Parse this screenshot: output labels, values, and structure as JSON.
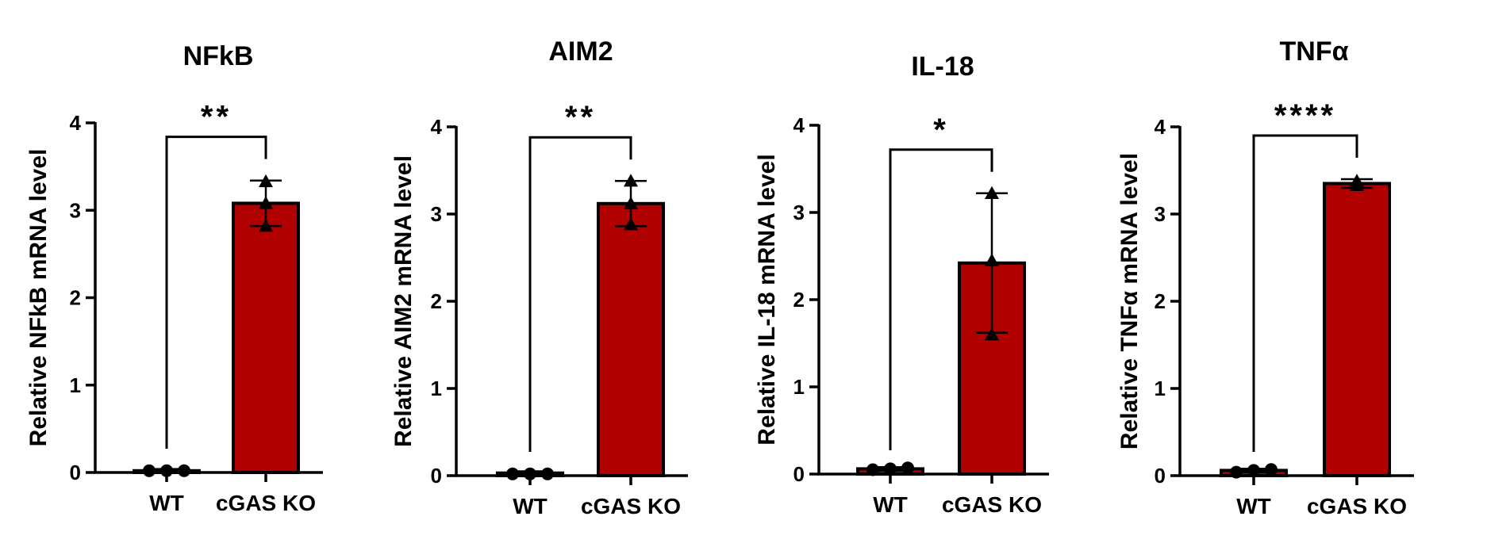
{
  "colors": {
    "bar_ko": "#b00000",
    "bar_wt": "#b00000",
    "axis": "#000000",
    "point": "#000000"
  },
  "chart_data": [
    {
      "type": "bar",
      "title": "NFkB",
      "ylabel": "Relative NFkB mRNA level",
      "xlabel": "",
      "ylim": [
        0,
        4
      ],
      "yticks": [
        "0",
        "1",
        "2",
        "3",
        "4"
      ],
      "categories": [
        "WT",
        "cGAS KO"
      ],
      "values": [
        0.02,
        3.08
      ],
      "errors": [
        0.02,
        0.26
      ],
      "points": [
        [
          0.02,
          0.02,
          0.02
        ],
        [
          3.33,
          3.08,
          2.82
        ]
      ],
      "point_shapes": [
        "circle",
        "triangle"
      ],
      "significance": "**"
    },
    {
      "type": "bar",
      "title": "AIM2",
      "ylabel": "Relative AIM2 mRNA level",
      "xlabel": "",
      "ylim": [
        0,
        4
      ],
      "yticks": [
        "0",
        "1",
        "2",
        "3",
        "4"
      ],
      "categories": [
        "WT",
        "cGAS KO"
      ],
      "values": [
        0.03,
        3.12
      ],
      "errors": [
        0.02,
        0.26
      ],
      "points": [
        [
          0.02,
          0.02,
          0.02
        ],
        [
          3.38,
          3.12,
          2.88
        ]
      ],
      "point_shapes": [
        "circle",
        "triangle"
      ],
      "significance": "**"
    },
    {
      "type": "bar",
      "title": "IL-18",
      "ylabel": "Relative IL-18 mRNA level",
      "xlabel": "",
      "ylim": [
        0,
        4
      ],
      "yticks": [
        "0",
        "1",
        "2",
        "3",
        "4"
      ],
      "categories": [
        "WT",
        "cGAS KO"
      ],
      "values": [
        0.06,
        2.42
      ],
      "errors": [
        0.02,
        0.8
      ],
      "points": [
        [
          0.05,
          0.06,
          0.07
        ],
        [
          3.22,
          2.45,
          1.6
        ]
      ],
      "point_shapes": [
        "circle",
        "triangle"
      ],
      "significance": "*"
    },
    {
      "type": "bar",
      "title": "TNFα",
      "ylabel": "Relative TNFα mRNA level",
      "xlabel": "",
      "ylim": [
        0,
        4
      ],
      "yticks": [
        "0",
        "1",
        "2",
        "3",
        "4"
      ],
      "categories": [
        "WT",
        "cGAS KO"
      ],
      "values": [
        0.06,
        3.35
      ],
      "errors": [
        0.02,
        0.05
      ],
      "points": [
        [
          0.04,
          0.06,
          0.07
        ],
        [
          3.38,
          3.33,
          3.33
        ]
      ],
      "point_shapes": [
        "circle",
        "triangle"
      ],
      "significance": "****"
    }
  ]
}
